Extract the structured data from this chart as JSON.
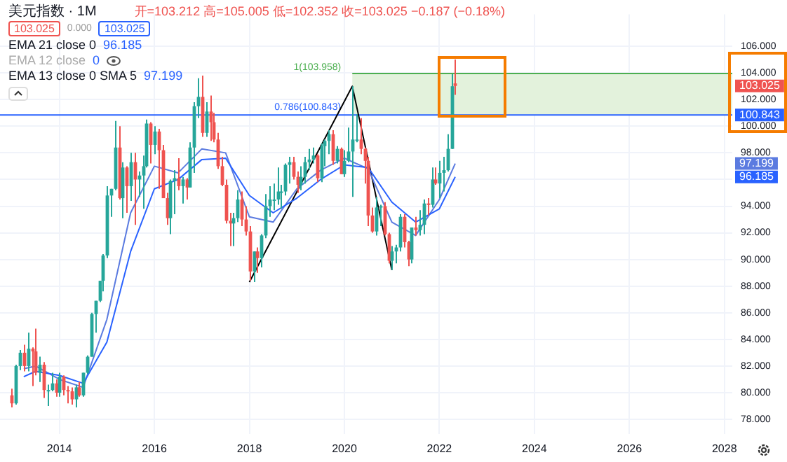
{
  "chart_data": {
    "type": "candlestick",
    "title": "美元指数 · 1M",
    "annotations": [
      "开=103.212 高=105.005 低=102.352 收=103.025 −0.187 (−0.18%)",
      "103.025",
      "0.000",
      "103.025",
      "EMA 21 close 0 96.185",
      "EMA 12 close 0",
      "EMA 13 close 0 SMA 5 97.199",
      "100.843",
      "97.199",
      "96.185"
    ],
    "x": [
      "2013-01",
      "2013-02",
      "2013-03",
      "2013-04",
      "2013-05",
      "2013-06",
      "2013-07",
      "2013-08",
      "2013-09",
      "2013-10",
      "2013-11",
      "2013-12",
      "2014-01",
      "2014-02",
      "2014-03",
      "2014-04",
      "2014-05",
      "2014-06",
      "2014-07",
      "2014-08",
      "2014-09",
      "2014-10",
      "2014-11",
      "2014-12",
      "2015-01",
      "2015-02",
      "2015-03",
      "2015-04",
      "2015-05",
      "2015-06",
      "2015-07",
      "2015-08",
      "2015-09",
      "2015-10",
      "2015-11",
      "2015-12",
      "2016-01",
      "2016-02",
      "2016-03",
      "2016-04",
      "2016-05",
      "2016-06",
      "2016-07",
      "2016-08",
      "2016-09",
      "2016-10",
      "2016-11",
      "2016-12",
      "2017-01",
      "2017-02",
      "2017-03",
      "2017-04",
      "2017-05",
      "2017-06",
      "2017-07",
      "2017-08",
      "2017-09",
      "2017-10",
      "2017-11",
      "2017-12",
      "2018-01",
      "2018-02",
      "2018-03",
      "2018-04",
      "2018-05",
      "2018-06",
      "2018-07",
      "2018-08",
      "2018-09",
      "2018-10",
      "2018-11",
      "2018-12",
      "2019-01",
      "2019-02",
      "2019-03",
      "2019-04",
      "2019-05",
      "2019-06",
      "2019-07",
      "2019-08",
      "2019-09",
      "2019-10",
      "2019-11",
      "2019-12",
      "2020-01",
      "2020-02",
      "2020-03",
      "2020-04",
      "2020-05",
      "2020-06",
      "2020-07",
      "2020-08",
      "2020-09",
      "2020-10",
      "2020-11",
      "2020-12",
      "2021-01",
      "2021-02",
      "2021-03",
      "2021-04",
      "2021-05",
      "2021-06",
      "2021-07",
      "2021-08",
      "2021-09",
      "2021-10",
      "2021-11",
      "2021-12",
      "2022-01",
      "2022-02",
      "2022-03",
      "2022-04",
      "2022-05"
    ],
    "ohlc": [
      [
        79.8,
        80.3,
        78.9,
        79.2
      ],
      [
        79.2,
        82.1,
        79.1,
        82.0
      ],
      [
        82.0,
        83.2,
        81.7,
        83.0
      ],
      [
        83.0,
        83.6,
        81.6,
        82.0
      ],
      [
        82.0,
        84.5,
        81.6,
        83.3
      ],
      [
        83.3,
        83.4,
        80.5,
        83.1
      ],
      [
        83.1,
        84.8,
        81.3,
        81.5
      ],
      [
        81.5,
        82.7,
        80.8,
        82.1
      ],
      [
        82.1,
        82.3,
        79.6,
        80.2
      ],
      [
        80.2,
        80.6,
        79.0,
        80.2
      ],
      [
        80.2,
        81.5,
        80.1,
        80.7
      ],
      [
        80.7,
        81.0,
        79.7,
        80.0
      ],
      [
        80.0,
        81.5,
        79.7,
        81.2
      ],
      [
        81.2,
        81.3,
        79.8,
        80.2
      ],
      [
        80.2,
        80.5,
        79.2,
        80.1
      ],
      [
        80.1,
        80.4,
        79.1,
        79.5
      ],
      [
        79.5,
        80.6,
        78.9,
        80.4
      ],
      [
        80.4,
        80.8,
        79.7,
        79.8
      ],
      [
        79.8,
        81.5,
        79.7,
        81.5
      ],
      [
        81.5,
        82.8,
        81.4,
        82.7
      ],
      [
        82.7,
        86.0,
        82.7,
        85.9
      ],
      [
        85.9,
        86.9,
        84.5,
        86.9
      ],
      [
        86.9,
        88.4,
        86.8,
        88.4
      ],
      [
        88.4,
        90.4,
        87.6,
        90.3
      ],
      [
        90.3,
        95.5,
        90.1,
        94.8
      ],
      [
        94.8,
        95.3,
        93.2,
        95.3
      ],
      [
        95.3,
        100.4,
        95.2,
        98.4
      ],
      [
        98.4,
        100.0,
        94.5,
        94.6
      ],
      [
        94.6,
        97.3,
        93.1,
        96.9
      ],
      [
        96.9,
        97.0,
        93.5,
        95.5
      ],
      [
        95.5,
        98.0,
        94.4,
        97.3
      ],
      [
        97.3,
        98.0,
        92.6,
        96.0
      ],
      [
        96.0,
        96.6,
        94.7,
        96.3
      ],
      [
        96.3,
        97.8,
        93.8,
        97.0
      ],
      [
        97.0,
        100.5,
        96.9,
        100.2
      ],
      [
        100.2,
        100.3,
        97.2,
        98.6
      ],
      [
        98.6,
        100.0,
        97.9,
        99.6
      ],
      [
        99.6,
        99.8,
        95.3,
        98.2
      ],
      [
        98.2,
        98.6,
        94.6,
        94.6
      ],
      [
        94.6,
        95.0,
        92.6,
        93.1
      ],
      [
        93.1,
        96.0,
        91.9,
        95.9
      ],
      [
        95.9,
        96.7,
        93.4,
        96.1
      ],
      [
        96.1,
        97.6,
        95.2,
        95.5
      ],
      [
        95.5,
        96.2,
        94.2,
        96.0
      ],
      [
        96.0,
        96.1,
        94.5,
        95.4
      ],
      [
        95.4,
        98.8,
        95.4,
        98.4
      ],
      [
        98.4,
        101.8,
        96.5,
        101.5
      ],
      [
        101.5,
        103.6,
        100.6,
        102.2
      ],
      [
        102.2,
        103.8,
        99.2,
        99.5
      ],
      [
        99.5,
        101.8,
        99.2,
        101.1
      ],
      [
        101.1,
        102.3,
        98.9,
        100.3
      ],
      [
        100.3,
        101.0,
        98.8,
        99.0
      ],
      [
        99.0,
        99.5,
        96.8,
        97.0
      ],
      [
        97.0,
        97.7,
        95.5,
        95.6
      ],
      [
        95.6,
        96.0,
        92.7,
        92.9
      ],
      [
        92.9,
        93.5,
        91.0,
        92.7
      ],
      [
        92.7,
        93.5,
        91.0,
        93.1
      ],
      [
        93.1,
        95.2,
        92.8,
        94.5
      ],
      [
        94.5,
        95.1,
        92.5,
        93.0
      ],
      [
        93.0,
        94.0,
        91.8,
        92.1
      ],
      [
        92.1,
        92.5,
        88.4,
        89.1
      ],
      [
        89.1,
        90.6,
        88.3,
        90.6
      ],
      [
        90.6,
        90.9,
        89.0,
        90.1
      ],
      [
        90.1,
        91.9,
        89.4,
        91.8
      ],
      [
        91.8,
        94.9,
        91.6,
        94.0
      ],
      [
        94.0,
        95.5,
        93.2,
        94.5
      ],
      [
        94.5,
        95.7,
        93.7,
        94.5
      ],
      [
        94.5,
        96.9,
        94.1,
        95.1
      ],
      [
        95.1,
        95.6,
        93.8,
        95.1
      ],
      [
        95.1,
        97.2,
        94.8,
        97.1
      ],
      [
        97.1,
        97.7,
        95.7,
        97.3
      ],
      [
        97.3,
        97.7,
        96.0,
        96.2
      ],
      [
        96.2,
        96.6,
        95.0,
        95.6
      ],
      [
        95.6,
        97.0,
        95.2,
        96.2
      ],
      [
        96.2,
        97.7,
        95.7,
        97.3
      ],
      [
        97.3,
        98.3,
        96.7,
        97.5
      ],
      [
        97.5,
        98.4,
        97.2,
        97.8
      ],
      [
        97.8,
        97.9,
        95.8,
        96.1
      ],
      [
        96.1,
        98.7,
        95.8,
        98.5
      ],
      [
        98.5,
        99.0,
        97.0,
        98.9
      ],
      [
        98.9,
        99.7,
        97.9,
        99.4
      ],
      [
        99.4,
        99.7,
        97.1,
        97.4
      ],
      [
        97.4,
        98.5,
        97.2,
        98.3
      ],
      [
        98.3,
        98.4,
        96.4,
        96.4
      ],
      [
        96.4,
        98.2,
        96.2,
        97.4
      ],
      [
        97.4,
        99.9,
        97.3,
        98.1
      ],
      [
        98.1,
        103.0,
        94.7,
        99.0
      ],
      [
        99.0,
        100.9,
        98.8,
        99.0
      ],
      [
        99.0,
        100.6,
        97.9,
        98.3
      ],
      [
        98.3,
        98.4,
        95.7,
        97.4
      ],
      [
        97.4,
        97.7,
        92.5,
        93.3
      ],
      [
        93.3,
        93.9,
        92.0,
        92.1
      ],
      [
        92.1,
        94.7,
        91.8,
        93.9
      ],
      [
        93.9,
        94.1,
        92.5,
        94.0
      ],
      [
        94.0,
        94.3,
        91.8,
        91.9
      ],
      [
        91.9,
        92.0,
        89.7,
        89.9
      ],
      [
        89.9,
        91.0,
        89.2,
        90.6
      ],
      [
        90.6,
        91.1,
        89.7,
        90.9
      ],
      [
        90.9,
        93.4,
        90.6,
        93.2
      ],
      [
        93.2,
        93.4,
        90.9,
        91.3
      ],
      [
        91.3,
        91.4,
        89.5,
        90.0
      ],
      [
        90.0,
        92.4,
        89.7,
        92.4
      ],
      [
        92.4,
        93.2,
        91.8,
        92.2
      ],
      [
        92.2,
        93.7,
        91.8,
        92.6
      ],
      [
        92.6,
        94.5,
        91.9,
        94.2
      ],
      [
        94.2,
        94.6,
        93.3,
        94.1
      ],
      [
        94.1,
        96.9,
        93.9,
        96.0
      ],
      [
        96.0,
        96.9,
        95.6,
        95.7
      ],
      [
        95.7,
        97.4,
        94.6,
        96.5
      ],
      [
        96.5,
        97.7,
        95.1,
        96.7
      ],
      [
        96.7,
        99.4,
        96.6,
        98.3
      ],
      [
        98.3,
        103.9,
        98.3,
        103.0
      ],
      [
        103.212,
        105.005,
        102.352,
        103.025
      ]
    ],
    "value_labels": [
      null,
      null,
      null,
      null,
      null,
      null,
      null,
      null,
      null,
      null,
      null,
      null,
      null,
      null,
      null,
      null,
      null,
      null,
      null,
      null,
      null,
      null,
      null,
      null,
      null,
      null,
      null,
      null,
      null,
      null,
      null,
      null,
      null,
      null,
      null,
      null,
      null,
      null,
      null,
      null,
      null,
      null,
      null,
      null,
      null,
      null,
      null,
      null,
      null,
      null,
      null,
      null,
      null,
      null,
      null,
      null,
      null,
      null,
      null,
      null,
      null,
      null,
      null,
      null,
      null,
      null,
      null,
      null,
      null,
      null,
      null,
      null,
      null,
      null,
      null,
      null,
      null,
      null,
      null,
      null,
      null,
      null,
      null,
      null,
      null,
      null,
      null,
      null,
      null,
      null,
      null,
      null,
      null,
      null,
      null,
      null,
      null,
      null,
      null,
      null,
      null,
      null,
      null,
      null,
      null,
      null,
      null,
      null,
      null,
      null,
      null,
      null,
      "103.025"
    ],
    "series": [
      {
        "type": "line",
        "color": "#2962ff",
        "x": [
          "2013-04",
          "2013-07",
          "2014-01",
          "2014-07",
          "2015-01",
          "2015-07",
          "2016-01",
          "2016-07",
          "2017-01",
          "2017-07",
          "2018-01",
          "2018-07",
          "2019-01",
          "2019-07",
          "2020-01",
          "2020-07",
          "2021-01",
          "2021-07",
          "2022-01",
          "2022-05"
        ],
        "values": [
          81.2,
          81.6,
          81.3,
          80.7,
          83.8,
          90.6,
          95.3,
          96.0,
          97.5,
          97.6,
          94.8,
          93.5,
          94.6,
          96.0,
          97.1,
          96.9,
          94.3,
          92.8,
          93.8,
          96.2
        ]
      },
      {
        "type": "line",
        "color": "#5b7be0",
        "x": [
          "2013-04",
          "2013-07",
          "2014-01",
          "2014-07",
          "2015-01",
          "2015-07",
          "2016-01",
          "2016-07",
          "2017-01",
          "2017-07",
          "2018-01",
          "2018-07",
          "2019-01",
          "2019-07",
          "2020-01",
          "2020-07",
          "2021-01",
          "2021-07",
          "2022-01",
          "2022-05"
        ],
        "values": [
          81.8,
          82.0,
          81.0,
          80.4,
          85.5,
          93.5,
          97.0,
          96.5,
          98.3,
          98.0,
          93.2,
          92.8,
          95.3,
          96.7,
          97.6,
          96.8,
          92.8,
          91.8,
          94.5,
          97.2
        ]
      },
      {
        "type": "line",
        "color": "#000000",
        "x": [
          "2018-01",
          "2020-03",
          "2021-01"
        ],
        "values": [
          88.3,
          103.0,
          89.2
        ]
      }
    ],
    "ref_lines": [
      {
        "axis": "y",
        "value": 100.843,
        "label": "0.786(100.843)",
        "color": "#2962ff"
      }
    ],
    "bands": [
      {
        "axis": "y",
        "from": 100.843,
        "to": 103.958,
        "label": "1(103.958)",
        "color": "#e3f2dc"
      }
    ],
    "xlim": [
      "2012-10",
      "2028-03"
    ],
    "xticks": [
      "2014",
      "2016",
      "2018",
      "2020",
      "2022",
      "2024",
      "2026",
      "2028"
    ],
    "ylim": [
      76.9,
      108.4
    ],
    "yticks": [
      {
        "value": 78,
        "label": "78.000"
      },
      {
        "value": 80,
        "label": "80.000"
      },
      {
        "value": 82,
        "label": "82.000"
      },
      {
        "value": 84,
        "label": "84.000"
      },
      {
        "value": 86,
        "label": "86.000"
      },
      {
        "value": 88,
        "label": "88.000"
      },
      {
        "value": 90,
        "label": "90.000"
      },
      {
        "value": 92,
        "label": "92.000"
      },
      {
        "value": 94,
        "label": "94.000"
      },
      {
        "value": 96,
        "label": null
      },
      {
        "value": 98,
        "label": "98.000"
      },
      {
        "value": 100,
        "label": "100.000"
      },
      {
        "value": 102,
        "label": "102.000"
      },
      {
        "value": 104,
        "label": "104.000"
      },
      {
        "value": 106,
        "label": "106.000"
      }
    ],
    "grid": true,
    "legend": false,
    "marker": "none",
    "line_style": "solid"
  }
}
